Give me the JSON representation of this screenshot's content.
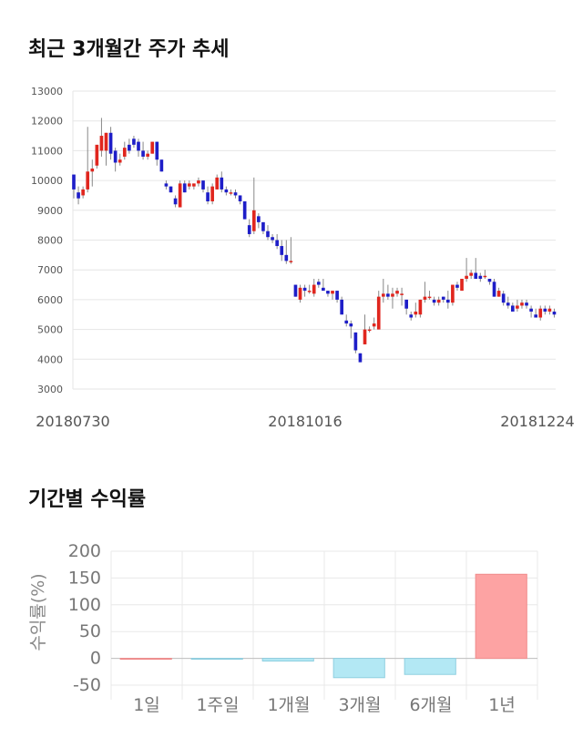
{
  "section1": {
    "title": "최근 3개월간 주가 추세"
  },
  "section2": {
    "title": "기간별 수익률"
  },
  "chart_data": [
    {
      "type": "candlestick",
      "y_ticks": [
        "13000",
        "12000",
        "11000",
        "10000",
        "9000",
        "8000",
        "7000",
        "6000",
        "5000",
        "4000",
        "3000"
      ],
      "ylim": [
        3000,
        13000
      ],
      "x_tick_labels": [
        "20180730",
        "20181016",
        "20181224"
      ],
      "grid": true,
      "colors": {
        "up": "#e0261e",
        "down": "#1e1ec8",
        "wick": "#888888"
      },
      "candles": [
        [
          10200,
          10200,
          9400,
          9700
        ],
        [
          9600,
          9800,
          9200,
          9400
        ],
        [
          9500,
          9800,
          9400,
          9700
        ],
        [
          9700,
          11800,
          9600,
          10300
        ],
        [
          10300,
          10700,
          9800,
          10400
        ],
        [
          10500,
          11100,
          10400,
          11200
        ],
        [
          11000,
          12100,
          10800,
          11500
        ],
        [
          11000,
          11600,
          10500,
          11600
        ],
        [
          11600,
          11800,
          10700,
          10900
        ],
        [
          11000,
          11100,
          10300,
          10600
        ],
        [
          10600,
          10900,
          10500,
          10700
        ],
        [
          10800,
          11300,
          10700,
          11100
        ],
        [
          11200,
          11400,
          10900,
          11000
        ],
        [
          11400,
          11500,
          11100,
          11200
        ],
        [
          11300,
          11400,
          10800,
          11000
        ],
        [
          11000,
          11300,
          10700,
          10800
        ],
        [
          10800,
          11000,
          10700,
          10900
        ],
        [
          10900,
          11300,
          10900,
          11300
        ],
        [
          11300,
          11300,
          10500,
          10700
        ],
        [
          10700,
          10700,
          10300,
          10300
        ],
        [
          9900,
          10000,
          9700,
          9800
        ],
        [
          9800,
          9800,
          9600,
          9600
        ],
        [
          9400,
          9500,
          9100,
          9200
        ],
        [
          9100,
          10000,
          9100,
          9900
        ],
        [
          9900,
          10000,
          9600,
          9600
        ],
        [
          9800,
          10000,
          9700,
          9900
        ],
        [
          9800,
          9900,
          9700,
          9900
        ],
        [
          9900,
          10100,
          9800,
          10000
        ],
        [
          10000,
          10000,
          9600,
          9700
        ],
        [
          9600,
          9800,
          9200,
          9300
        ],
        [
          9300,
          9900,
          9200,
          9800
        ],
        [
          9700,
          10200,
          9700,
          10100
        ],
        [
          10100,
          10300,
          9600,
          9700
        ],
        [
          9700,
          9800,
          9500,
          9600
        ],
        [
          9600,
          9700,
          9500,
          9600
        ],
        [
          9600,
          9700,
          9400,
          9500
        ],
        [
          9500,
          9500,
          9200,
          9300
        ],
        [
          9300,
          9300,
          8700,
          8700
        ],
        [
          8500,
          8700,
          8100,
          8200
        ],
        [
          8300,
          10100,
          8200,
          9000
        ],
        [
          8800,
          8900,
          8400,
          8600
        ],
        [
          8600,
          8600,
          8200,
          8300
        ],
        [
          8300,
          8500,
          8000,
          8100
        ],
        [
          8100,
          8200,
          7900,
          8000
        ],
        [
          8000,
          8200,
          7700,
          7800
        ],
        [
          7800,
          8000,
          7300,
          7500
        ],
        [
          7500,
          8000,
          7200,
          7300
        ],
        [
          7300,
          8100,
          7200,
          7300
        ],
        [
          6500,
          6500,
          6100,
          6100
        ],
        [
          6000,
          6500,
          5900,
          6400
        ],
        [
          6400,
          6500,
          6100,
          6300
        ],
        [
          6300,
          6500,
          6200,
          6300
        ],
        [
          6200,
          6700,
          6100,
          6500
        ],
        [
          6600,
          6700,
          6400,
          6500
        ],
        [
          6400,
          6700,
          6300,
          6300
        ],
        [
          6300,
          6300,
          6100,
          6200
        ],
        [
          6200,
          6300,
          6000,
          6300
        ],
        [
          6300,
          6300,
          5900,
          6000
        ],
        [
          6000,
          6100,
          5500,
          5500
        ],
        [
          5300,
          5500,
          5100,
          5200
        ],
        [
          5200,
          5300,
          4700,
          5100
        ],
        [
          4900,
          4900,
          4200,
          4300
        ],
        [
          4200,
          4200,
          3900,
          3900
        ],
        [
          4500,
          5500,
          4500,
          5000
        ],
        [
          5000,
          5100,
          4900,
          5000
        ],
        [
          5100,
          5400,
          5000,
          5200
        ],
        [
          5000,
          6300,
          5000,
          6100
        ],
        [
          6100,
          6700,
          5900,
          6200
        ],
        [
          6200,
          6500,
          6000,
          6100
        ],
        [
          6100,
          6400,
          5700,
          6200
        ],
        [
          6200,
          6400,
          6100,
          6300
        ],
        [
          6200,
          6400,
          5800,
          6200
        ],
        [
          6000,
          6000,
          5500,
          5700
        ],
        [
          5500,
          5600,
          5300,
          5400
        ],
        [
          5500,
          5900,
          5400,
          5600
        ],
        [
          5500,
          6000,
          5400,
          6000
        ],
        [
          6000,
          6600,
          5900,
          6100
        ],
        [
          6100,
          6300,
          6000,
          6100
        ],
        [
          6000,
          6100,
          5800,
          5900
        ],
        [
          5900,
          6100,
          5800,
          6000
        ],
        [
          6100,
          6100,
          5900,
          6000
        ],
        [
          6000,
          6300,
          5700,
          5900
        ],
        [
          5900,
          6500,
          5800,
          6500
        ],
        [
          6500,
          6600,
          6300,
          6400
        ],
        [
          6300,
          6700,
          6300,
          6700
        ],
        [
          6700,
          7400,
          6600,
          6800
        ],
        [
          6800,
          7000,
          6700,
          6900
        ],
        [
          6900,
          7400,
          6700,
          6700
        ],
        [
          6800,
          6900,
          6600,
          6700
        ],
        [
          6800,
          7000,
          6700,
          6800
        ],
        [
          6700,
          6700,
          6500,
          6600
        ],
        [
          6600,
          6700,
          6100,
          6100
        ],
        [
          6100,
          6400,
          6100,
          6300
        ],
        [
          6200,
          6300,
          5800,
          5900
        ],
        [
          5900,
          6100,
          5700,
          5800
        ],
        [
          5800,
          5900,
          5600,
          5600
        ],
        [
          5700,
          6000,
          5600,
          5800
        ],
        [
          5800,
          6000,
          5700,
          5900
        ],
        [
          5900,
          6000,
          5700,
          5800
        ],
        [
          5700,
          5800,
          5400,
          5600
        ],
        [
          5500,
          5700,
          5400,
          5400
        ],
        [
          5400,
          5800,
          5300,
          5700
        ],
        [
          5700,
          5800,
          5500,
          5600
        ],
        [
          5600,
          5800,
          5500,
          5700
        ],
        [
          5600,
          5700,
          5400,
          5500
        ]
      ]
    },
    {
      "type": "bar",
      "categories": [
        "1일",
        "1주일",
        "1개월",
        "3개월",
        "6개월",
        "1년"
      ],
      "values": [
        0,
        -1,
        -5,
        -36,
        -30,
        157
      ],
      "ylabel": "수익률(%)",
      "y_ticks": [
        "200",
        "150",
        "100",
        "50",
        "0",
        "-50"
      ],
      "ylim": [
        -50,
        200
      ],
      "grid": true,
      "colors": {
        "positive": "#fda3a3",
        "negative": "#b3e8f4"
      }
    }
  ]
}
